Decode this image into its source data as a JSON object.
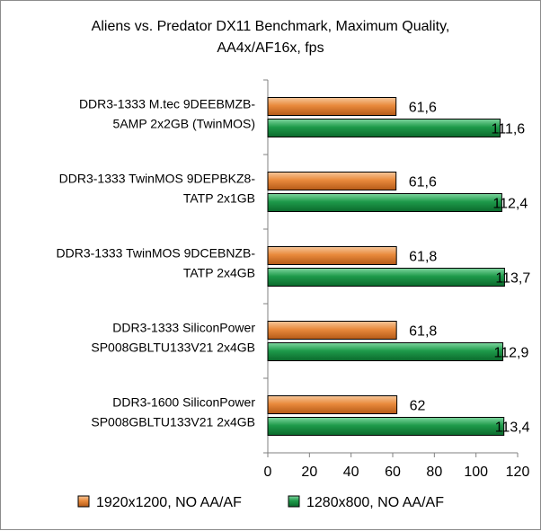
{
  "chart_data": {
    "type": "bar",
    "orientation": "horizontal",
    "title_lines": [
      "Aliens vs. Predator DX11 Benchmark, Maximum Quality,",
      "AA4x/AF16x, fps"
    ],
    "categories": [
      [
        "DDR3-1333 M.tec 9DEEBMZB-",
        "5AMP 2x2GB (TwinMOS)"
      ],
      [
        "DDR3-1333 TwinMOS 9DEPBKZ8-",
        "TATP 2x1GB"
      ],
      [
        "DDR3-1333 TwinMOS 9DCEBNZB-",
        "TATP 2x4GB"
      ],
      [
        "DDR3-1333 SiliconPower",
        "SP008GBLTU133V21 2x4GB"
      ],
      [
        "DDR3-1600 SiliconPower",
        "SP008GBLTU133V21 2x4GB"
      ]
    ],
    "series": [
      {
        "name": "1920x1200, NO AA/AF",
        "color": "#e98a3c",
        "values": [
          61.6,
          61.6,
          61.8,
          61.8,
          62
        ],
        "labels": [
          "61,6",
          "61,6",
          "61,8",
          "61,8",
          "62"
        ]
      },
      {
        "name": "1280x800, NO AA/AF",
        "color": "#1e9a4a",
        "values": [
          111.6,
          112.4,
          113.7,
          112.9,
          113.4
        ],
        "labels": [
          "111,6",
          "112,4",
          "113,7",
          "112,9",
          "113,4"
        ]
      }
    ],
    "xlim": [
      0,
      120
    ],
    "xticks": [
      0,
      20,
      40,
      60,
      80,
      100,
      120
    ],
    "legend_position": "bottom",
    "grid": false
  }
}
